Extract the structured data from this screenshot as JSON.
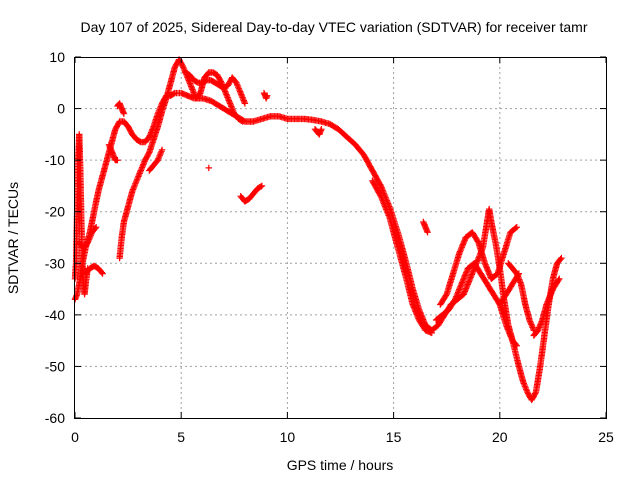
{
  "chart_data": {
    "type": "scatter",
    "title": "Day 107 of 2025, Sidereal Day-to-day VTEC variation (SDTVAR) for receiver tamr",
    "xlabel": "GPS time / hours",
    "ylabel": "SDTVAR / TECUs",
    "xlim": [
      0,
      25
    ],
    "ylim": [
      -60,
      10
    ],
    "xticks": [
      "0",
      "5",
      "10",
      "15",
      "20",
      "25"
    ],
    "yticks": [
      "10",
      "0",
      "-10",
      "-20",
      "-30",
      "-40",
      "-50",
      "-60"
    ],
    "grid": true,
    "marker": "plus",
    "series_color": "#ff0000",
    "series": [
      {
        "segments": [
          [
            [
              0.0,
              -33
            ],
            [
              0.05,
              -30
            ],
            [
              0.1,
              -20
            ],
            [
              0.15,
              -10
            ],
            [
              0.2,
              -5
            ],
            [
              0.25,
              -12
            ],
            [
              0.3,
              -22
            ],
            [
              0.35,
              -30
            ],
            [
              0.4,
              -34
            ],
            [
              0.45,
              -36
            ],
            [
              0.5,
              -34
            ],
            [
              0.6,
              -31
            ]
          ],
          [
            [
              0.0,
              -37
            ],
            [
              0.1,
              -36
            ],
            [
              0.2,
              -34
            ],
            [
              0.35,
              -30
            ],
            [
              0.5,
              -27
            ],
            [
              0.7,
              -24
            ],
            [
              0.9,
              -20
            ],
            [
              1.1,
              -16
            ],
            [
              1.3,
              -13
            ],
            [
              1.5,
              -10
            ],
            [
              1.7,
              -7
            ],
            [
              1.9,
              -4
            ],
            [
              2.1,
              -2.5
            ],
            [
              2.3,
              -2.5
            ],
            [
              2.5,
              -3.5
            ],
            [
              2.7,
              -5
            ],
            [
              2.9,
              -6
            ],
            [
              3.1,
              -6.5
            ],
            [
              3.3,
              -6.5
            ],
            [
              3.5,
              -5.5
            ],
            [
              3.7,
              -3.5
            ],
            [
              3.9,
              -1
            ],
            [
              4.1,
              1
            ],
            [
              4.3,
              2.5
            ],
            [
              4.5,
              2.5
            ],
            [
              4.7,
              3
            ],
            [
              5.0,
              3
            ],
            [
              5.3,
              2.5
            ],
            [
              5.6,
              2
            ],
            [
              6.0,
              2
            ],
            [
              6.4,
              1.5
            ],
            [
              6.8,
              0.5
            ],
            [
              7.2,
              -0.5
            ],
            [
              7.6,
              -1.5
            ],
            [
              8.0,
              -2.5
            ],
            [
              8.4,
              -2.5
            ],
            [
              8.8,
              -2
            ],
            [
              9.2,
              -1.5
            ],
            [
              9.6,
              -1.5
            ],
            [
              10.0,
              -2
            ],
            [
              10.4,
              -2
            ],
            [
              10.8,
              -2
            ],
            [
              11.2,
              -2.2
            ],
            [
              11.6,
              -2.5
            ],
            [
              12.0,
              -3
            ],
            [
              12.4,
              -4
            ],
            [
              12.8,
              -5.5
            ],
            [
              13.2,
              -7
            ],
            [
              13.6,
              -9
            ],
            [
              14.0,
              -12
            ],
            [
              14.4,
              -15
            ],
            [
              14.8,
              -19
            ],
            [
              15.2,
              -24
            ],
            [
              15.6,
              -30
            ],
            [
              15.9,
              -35
            ],
            [
              16.2,
              -39
            ],
            [
              16.5,
              -42
            ],
            [
              16.8,
              -43
            ],
            [
              17.1,
              -42
            ],
            [
              17.4,
              -40
            ],
            [
              17.7,
              -38
            ],
            [
              18.0,
              -37
            ],
            [
              18.3,
              -36
            ]
          ],
          [
            [
              0.2,
              -26
            ],
            [
              0.4,
              -27
            ],
            [
              0.6,
              -26
            ],
            [
              0.8,
              -24
            ],
            [
              1.0,
              -23
            ]
          ],
          [
            [
              0.5,
              -32
            ],
            [
              0.7,
              -31
            ],
            [
              0.9,
              -30.5
            ],
            [
              1.1,
              -31
            ],
            [
              1.3,
              -32
            ]
          ],
          [
            [
              1.6,
              -7
            ],
            [
              1.7,
              -8
            ],
            [
              1.8,
              -9
            ],
            [
              1.9,
              -10
            ],
            [
              2.0,
              -10
            ]
          ],
          [
            [
              2.1,
              -29
            ],
            [
              2.2,
              -25
            ],
            [
              2.3,
              -22
            ],
            [
              2.5,
              -19
            ],
            [
              2.7,
              -16
            ],
            [
              2.9,
              -14
            ],
            [
              3.1,
              -12
            ],
            [
              3.3,
              -10
            ],
            [
              3.5,
              -8.5
            ],
            [
              3.7,
              -6
            ],
            [
              3.9,
              -3.5
            ],
            [
              4.1,
              -0.5
            ],
            [
              4.3,
              2
            ],
            [
              4.5,
              5
            ],
            [
              4.7,
              8
            ],
            [
              4.9,
              9.5
            ],
            [
              5.1,
              8
            ],
            [
              5.3,
              6
            ],
            [
              5.5,
              4
            ],
            [
              5.7,
              2
            ],
            [
              5.9,
              3
            ],
            [
              6.1,
              6
            ],
            [
              6.3,
              7
            ],
            [
              6.5,
              7
            ],
            [
              6.7,
              6.5
            ],
            [
              6.9,
              5
            ],
            [
              7.1,
              3
            ],
            [
              7.3,
              1
            ],
            [
              7.5,
              -1
            ],
            [
              7.7,
              -2
            ],
            [
              7.9,
              -2.5
            ]
          ],
          [
            [
              2.0,
              0.5
            ],
            [
              2.1,
              1
            ],
            [
              2.2,
              0
            ],
            [
              2.3,
              -1
            ]
          ],
          [
            [
              3.5,
              -12
            ],
            [
              3.7,
              -11
            ],
            [
              3.9,
              -10
            ],
            [
              4.1,
              -8
            ]
          ],
          [
            [
              5.2,
              7
            ],
            [
              5.4,
              6.5
            ],
            [
              5.6,
              5.5
            ],
            [
              5.8,
              5
            ],
            [
              6.0,
              5
            ],
            [
              6.2,
              5.5
            ],
            [
              6.4,
              5.5
            ],
            [
              6.6,
              5
            ],
            [
              6.8,
              4.5
            ],
            [
              7.0,
              4
            ],
            [
              7.2,
              4.5
            ],
            [
              7.4,
              6
            ],
            [
              7.6,
              5
            ],
            [
              7.8,
              3
            ],
            [
              8.0,
              1
            ]
          ],
          [
            [
              6.3,
              -11.5
            ]
          ],
          [
            [
              7.8,
              -17
            ],
            [
              8.0,
              -18
            ],
            [
              8.2,
              -17.5
            ],
            [
              8.4,
              -16.5
            ],
            [
              8.6,
              -15.5
            ],
            [
              8.8,
              -15
            ]
          ],
          [
            [
              8.9,
              3
            ],
            [
              9.0,
              2
            ],
            [
              9.05,
              2.5
            ]
          ],
          [
            [
              11.3,
              -4
            ],
            [
              11.5,
              -5
            ],
            [
              11.6,
              -4
            ]
          ],
          [
            [
              14.0,
              -14
            ],
            [
              14.4,
              -17
            ],
            [
              14.8,
              -21
            ],
            [
              15.2,
              -27
            ],
            [
              15.6,
              -33
            ],
            [
              15.9,
              -38
            ],
            [
              16.2,
              -41
            ],
            [
              16.5,
              -43
            ],
            [
              16.8,
              -43.5
            ]
          ],
          [
            [
              16.4,
              -22
            ],
            [
              16.5,
              -23
            ],
            [
              16.6,
              -24
            ]
          ],
          [
            [
              17.2,
              -38
            ],
            [
              17.5,
              -36
            ],
            [
              17.8,
              -32
            ],
            [
              18.1,
              -28
            ],
            [
              18.4,
              -25
            ],
            [
              18.7,
              -24
            ],
            [
              19.0,
              -26
            ],
            [
              19.3,
              -30
            ],
            [
              19.6,
              -33
            ],
            [
              19.9,
              -32
            ],
            [
              20.2,
              -28
            ],
            [
              20.5,
              -24
            ],
            [
              20.8,
              -23
            ]
          ],
          [
            [
              17.0,
              -41
            ],
            [
              17.3,
              -40
            ],
            [
              17.6,
              -39
            ],
            [
              17.9,
              -37
            ],
            [
              18.2,
              -34
            ],
            [
              18.5,
              -31
            ],
            [
              18.8,
              -30
            ],
            [
              19.1,
              -32
            ],
            [
              19.4,
              -34
            ],
            [
              19.7,
              -36
            ],
            [
              20.0,
              -38
            ],
            [
              20.3,
              -36
            ],
            [
              20.6,
              -34
            ],
            [
              20.9,
              -32
            ]
          ],
          [
            [
              18.3,
              -36
            ],
            [
              18.6,
              -33
            ],
            [
              18.9,
              -30
            ],
            [
              19.2,
              -27
            ],
            [
              19.4,
              -22
            ],
            [
              19.5,
              -19.5
            ],
            [
              19.6,
              -22
            ],
            [
              19.8,
              -26
            ],
            [
              20.0,
              -31
            ],
            [
              20.2,
              -37
            ],
            [
              20.4,
              -42
            ],
            [
              20.6,
              -45
            ],
            [
              20.8,
              -46
            ]
          ],
          [
            [
              20.4,
              -30
            ],
            [
              20.6,
              -31
            ],
            [
              20.8,
              -32
            ],
            [
              21.0,
              -34
            ],
            [
              21.2,
              -38
            ],
            [
              21.4,
              -41
            ],
            [
              21.6,
              -43
            ]
          ],
          [
            [
              20.0,
              -38
            ],
            [
              20.3,
              -42
            ],
            [
              20.6,
              -45
            ],
            [
              20.9,
              -50
            ],
            [
              21.1,
              -53
            ],
            [
              21.3,
              -55
            ],
            [
              21.5,
              -56.5
            ],
            [
              21.7,
              -55
            ],
            [
              21.9,
              -50
            ],
            [
              22.1,
              -44
            ],
            [
              22.3,
              -38
            ],
            [
              22.5,
              -33
            ],
            [
              22.7,
              -30
            ],
            [
              22.9,
              -29
            ]
          ],
          [
            [
              21.6,
              -44
            ],
            [
              21.8,
              -43
            ],
            [
              22.0,
              -41
            ],
            [
              22.2,
              -38
            ],
            [
              22.5,
              -35
            ],
            [
              22.8,
              -33
            ]
          ]
        ]
      }
    ]
  }
}
